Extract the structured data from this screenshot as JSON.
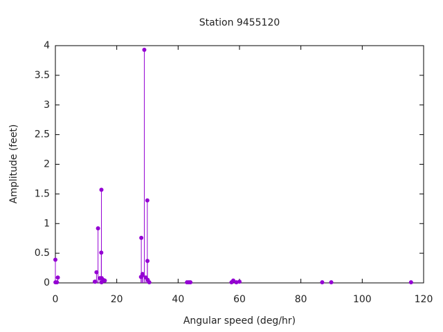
{
  "chart_data": {
    "type": "stem",
    "title": "Station 9455120",
    "x_label": "Angular speed (deg/hr)",
    "y_label": "Amplitude (feet)",
    "color": "#9400d3",
    "x": [
      0,
      0.04,
      0.5,
      0.8,
      12.85,
      13.0,
      13.4,
      13.9,
      14.5,
      14.96,
      15.0,
      15.04,
      15.1,
      15.6,
      16.1,
      27.9,
      28.0,
      28.4,
      28.5,
      28.98,
      29.5,
      29.96,
      30.0,
      30.1,
      30.6,
      42.9,
      43.5,
      44.0,
      57.4,
      57.97,
      58.98,
      60.0,
      86.95,
      89.9,
      115.9
    ],
    "values": [
      0.39,
      0.01,
      0.01,
      0.09,
      0.02,
      0.02,
      0.18,
      0.92,
      0.08,
      0.51,
      1.57,
      0.01,
      0.08,
      0.05,
      0.04,
      0.1,
      0.76,
      0.15,
      0.13,
      3.93,
      0.09,
      1.39,
      0.37,
      0.05,
      0.01,
      0.01,
      0.01,
      0.01,
      0.01,
      0.04,
      0.01,
      0.02,
      0.01,
      0.01,
      0.01
    ],
    "xlim": [
      0,
      120
    ],
    "xticks": [
      0,
      20,
      40,
      60,
      80,
      100,
      120
    ],
    "ylim": [
      0,
      4
    ],
    "yticks": [
      0,
      0.5,
      1,
      1.5,
      2,
      2.5,
      3,
      3.5,
      4
    ]
  }
}
